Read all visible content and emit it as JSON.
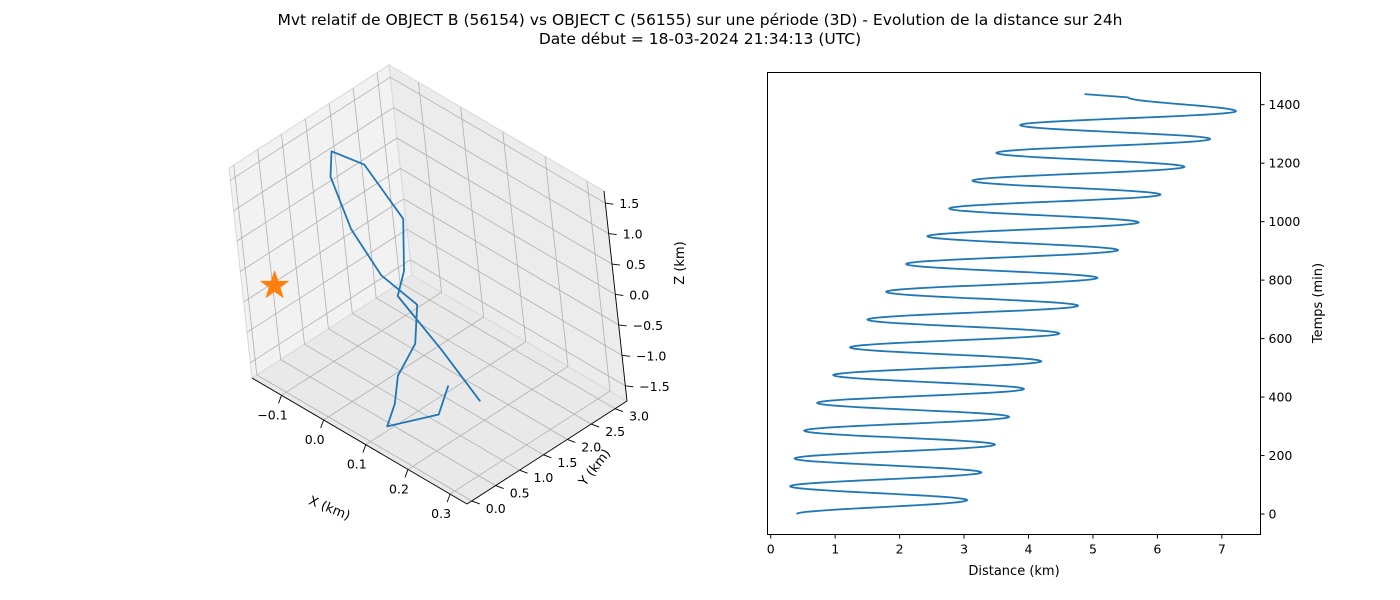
{
  "title": {
    "line1": "Mvt relatif de OBJECT B (56154) vs OBJECT C (56155) sur une période (3D) - Evolution de la distance sur 24h",
    "line2": "Date début = 18-03-2024 21:34:13 (UTC)"
  },
  "colors": {
    "series": "#1f77b4",
    "marker": "#ff7f0e",
    "pane": "#f2f2f2",
    "grid": "#b0b0b0"
  },
  "chart_data": [
    {
      "type": "line3d",
      "xlabel": "X (km)",
      "ylabel": "Y (km)",
      "zlabel": "Z (km)",
      "xticks": [
        "−0.1",
        "0.0",
        "0.1",
        "0.2",
        "0.3"
      ],
      "yticks": [
        "0.0",
        "0.5",
        "1.0",
        "1.5",
        "2.0",
        "2.5",
        "3.0"
      ],
      "zticks": [
        "1.5",
        "1.0",
        "0.5",
        "0.0",
        "−0.5",
        "−1.0",
        "−1.5"
      ],
      "grid": true,
      "trajectory": [
        [
          0.17,
          1.1,
          -1.1
        ],
        [
          0.17,
          0.85,
          -1.45
        ],
        [
          0.11,
          0.28,
          -1.6
        ],
        [
          0.12,
          0.4,
          -1.25
        ],
        [
          0.12,
          0.52,
          -0.85
        ],
        [
          0.13,
          0.85,
          -0.45
        ],
        [
          0.12,
          1.05,
          0.05
        ],
        [
          0.05,
          0.95,
          0.3
        ],
        [
          -0.02,
          1.0,
          0.75
        ],
        [
          -0.09,
          1.25,
          1.2
        ],
        [
          -0.1,
          1.4,
          1.5
        ],
        [
          -0.04,
          1.55,
          1.45
        ],
        [
          0.05,
          1.5,
          0.95
        ],
        [
          0.07,
          1.25,
          0.3
        ],
        [
          0.06,
          1.15,
          -0.1
        ],
        [
          0.15,
          1.2,
          -0.65
        ],
        [
          0.24,
          1.15,
          -1.1
        ]
      ],
      "marker": {
        "symbol": "star",
        "x": -0.1,
        "y": 0.0,
        "z": 0.0
      }
    },
    {
      "type": "line",
      "xlabel": "Distance (km)",
      "ylabel": "Temps (min)",
      "xticks": [
        0,
        1,
        2,
        3,
        4,
        5,
        6,
        7
      ],
      "yticks": [
        0,
        200,
        400,
        600,
        800,
        1000,
        1200,
        1400
      ],
      "xlim": [
        -0.05,
        7.6
      ],
      "ylim": [
        -70,
        1510
      ],
      "grid": false,
      "period_min": 95,
      "cycles": [
        {
          "t_start": 0,
          "min": 0.4,
          "max": 3.05
        },
        {
          "t_start": 95,
          "min": 0.3,
          "max": 3.27
        },
        {
          "t_start": 190,
          "min": 0.37,
          "max": 3.48
        },
        {
          "t_start": 285,
          "min": 0.52,
          "max": 3.7
        },
        {
          "t_start": 380,
          "min": 0.72,
          "max": 3.93
        },
        {
          "t_start": 475,
          "min": 0.97,
          "max": 4.2
        },
        {
          "t_start": 570,
          "min": 1.23,
          "max": 4.48
        },
        {
          "t_start": 665,
          "min": 1.5,
          "max": 4.77
        },
        {
          "t_start": 760,
          "min": 1.79,
          "max": 5.07
        },
        {
          "t_start": 855,
          "min": 2.1,
          "max": 5.39
        },
        {
          "t_start": 950,
          "min": 2.43,
          "max": 5.71
        },
        {
          "t_start": 1045,
          "min": 2.77,
          "max": 6.05
        },
        {
          "t_start": 1140,
          "min": 3.13,
          "max": 6.42
        },
        {
          "t_start": 1235,
          "min": 3.5,
          "max": 6.82
        },
        {
          "t_start": 1330,
          "min": 3.87,
          "max": 7.22
        }
      ],
      "end": {
        "t": 1436,
        "d": 4.87
      }
    }
  ]
}
